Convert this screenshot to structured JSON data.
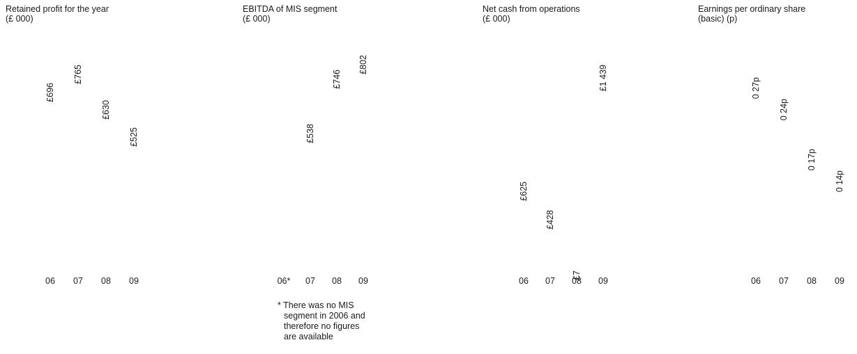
{
  "chart_data": [
    {
      "type": "bar",
      "title": [
        "Retained profit for the year",
        "(£ 000)"
      ],
      "categories": [
        "06",
        "07",
        "08",
        "09"
      ],
      "values": [
        696,
        765,
        630,
        525
      ],
      "value_labels": [
        "£696",
        "£765",
        "£630",
        "£525"
      ],
      "ylim": [
        0,
        800
      ],
      "grid": false,
      "label_orientation": "vertical"
    },
    {
      "type": "bar",
      "title": [
        "EBITDA of MIS segment",
        "(£ 000)"
      ],
      "categories": [
        "06*",
        "07",
        "08",
        "09"
      ],
      "values": [
        null,
        538,
        746,
        802
      ],
      "value_labels": [
        "",
        "£538",
        "£746",
        "£802"
      ],
      "ylim": [
        0,
        800
      ],
      "grid": false,
      "label_orientation": "vertical",
      "footnote": [
        "* There was no MIS",
        "segment in 2006 and",
        "therefore no figures",
        "are available"
      ]
    },
    {
      "type": "bar",
      "title": [
        "Net cash from operations",
        "(£ 000)"
      ],
      "categories": [
        "06",
        "07",
        "08",
        "09"
      ],
      "values": [
        625,
        428,
        7,
        1439
      ],
      "value_labels": [
        "£625",
        "£428",
        "£7",
        "£1 439"
      ],
      "ylim": [
        0,
        1500
      ],
      "grid": false,
      "label_orientation": "vertical"
    },
    {
      "type": "bar",
      "title": [
        "Earnings per ordinary share",
        "(basic) (p)"
      ],
      "categories": [
        "06",
        "07",
        "08",
        "09"
      ],
      "values": [
        0.27,
        0.24,
        0.17,
        0.14
      ],
      "value_labels": [
        "0 27p",
        "0 24p",
        "0 17p",
        "0 14p"
      ],
      "ylim": [
        0,
        0.3
      ],
      "grid": false,
      "label_orientation": "vertical"
    }
  ]
}
